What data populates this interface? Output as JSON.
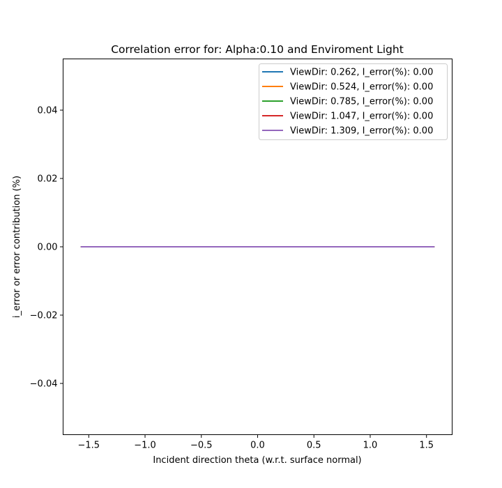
{
  "chart_data": {
    "type": "line",
    "title": "Correlation error for: Alpha:0.10 and Enviroment Light",
    "xlabel": "Incident direction theta (w.r.t. surface normal)",
    "ylabel": "i_error or error contribution (%)",
    "xlim": [
      -1.7279,
      1.7279
    ],
    "ylim": [
      -0.055,
      0.055
    ],
    "x_ticks": [
      {
        "value": -1.5,
        "label": "−1.5"
      },
      {
        "value": -1.0,
        "label": "−1.0"
      },
      {
        "value": -0.5,
        "label": "−0.5"
      },
      {
        "value": 0.0,
        "label": "0.0"
      },
      {
        "value": 0.5,
        "label": "0.5"
      },
      {
        "value": 1.0,
        "label": "1.0"
      },
      {
        "value": 1.5,
        "label": "1.5"
      }
    ],
    "y_ticks": [
      {
        "value": 0.04,
        "label": "0.04"
      },
      {
        "value": 0.02,
        "label": "0.02"
      },
      {
        "value": 0.0,
        "label": "0.00"
      },
      {
        "value": -0.02,
        "label": "−0.02"
      },
      {
        "value": -0.04,
        "label": "−0.04"
      }
    ],
    "grid": false,
    "legend_position": "top-right",
    "series": [
      {
        "name": "ViewDir: 0.262, I_error(%): 0.00",
        "color": "#1f77b4",
        "x": [
          -1.5708,
          1.5708
        ],
        "y": [
          0,
          0
        ]
      },
      {
        "name": "ViewDir: 0.524, I_error(%): 0.00",
        "color": "#ff7f0e",
        "x": [
          -1.5708,
          1.5708
        ],
        "y": [
          0,
          0
        ]
      },
      {
        "name": "ViewDir: 0.785, I_error(%): 0.00",
        "color": "#2ca02c",
        "x": [
          -1.5708,
          1.5708
        ],
        "y": [
          0,
          0
        ]
      },
      {
        "name": "ViewDir: 1.047, I_error(%): 0.00",
        "color": "#d62728",
        "x": [
          -1.5708,
          1.5708
        ],
        "y": [
          0,
          0
        ]
      },
      {
        "name": "ViewDir: 1.309, I_error(%): 0.00",
        "color": "#9467bd",
        "x": [
          -1.5708,
          1.5708
        ],
        "y": [
          0,
          0
        ]
      }
    ]
  }
}
